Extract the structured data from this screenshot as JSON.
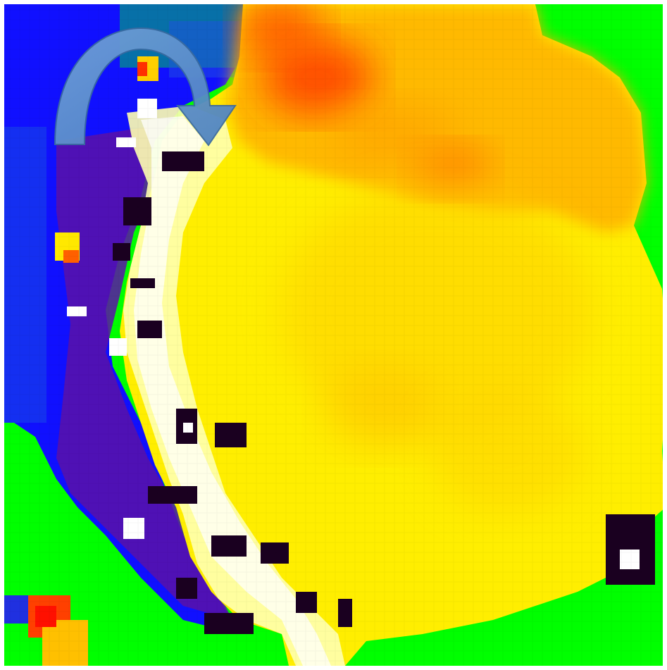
{
  "image": {
    "kind": "false-color pixelated intensity map",
    "palette": {
      "background": "#00ff00",
      "low": "#0000ff",
      "low_mid": "#5a0fa0",
      "dark": "#1a0020",
      "white": "#ffffff",
      "pale_yellow": "#ffffa0",
      "yellow": "#ffff00",
      "gold": "#ffd500",
      "orange": "#ff9500",
      "red": "#ff2000",
      "arrow": "#5b8fc9",
      "arrow_edge": "#3a6aa0"
    },
    "arrow_icon": "curved-arrow-icon"
  }
}
